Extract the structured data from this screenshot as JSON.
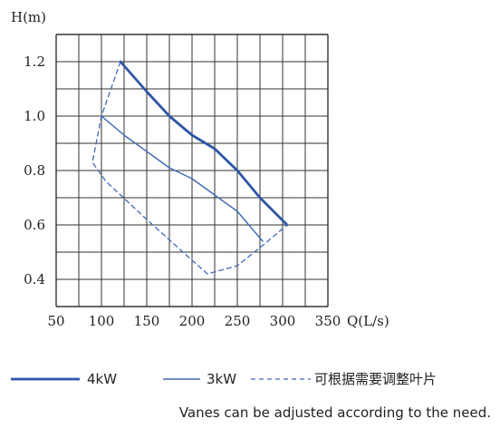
{
  "chart_data": {
    "type": "line",
    "title": "",
    "xlabel": "Q(L/s)",
    "ylabel": "H(m)",
    "xlim": [
      50,
      350
    ],
    "ylim": [
      0.3,
      1.3
    ],
    "x_ticks": [
      50,
      100,
      150,
      200,
      250,
      300,
      350
    ],
    "x_tick_labels": [
      "50",
      "100",
      "150",
      "200",
      "250",
      "300",
      "350"
    ],
    "y_ticks": [
      0.4,
      0.6,
      0.8,
      1.0,
      1.2
    ],
    "y_tick_labels": [
      "0.4",
      "0.6",
      "0.8",
      "1.0",
      "1.2"
    ],
    "grid": true,
    "legend_position": "bottom",
    "series": [
      {
        "name": "4kW",
        "style": "solid-thick",
        "color": "#2e55a6",
        "points": [
          [
            121,
            1.2
          ],
          [
            150,
            1.09
          ],
          [
            175,
            1.0
          ],
          [
            200,
            0.93
          ],
          [
            225,
            0.88
          ],
          [
            250,
            0.8
          ],
          [
            275,
            0.7
          ],
          [
            305,
            0.6
          ]
        ]
      },
      {
        "name": "3kW",
        "style": "solid-thin",
        "color": "#3f69b7",
        "points": [
          [
            100,
            1.0
          ],
          [
            125,
            0.93
          ],
          [
            150,
            0.87
          ],
          [
            175,
            0.81
          ],
          [
            200,
            0.77
          ],
          [
            225,
            0.71
          ],
          [
            250,
            0.65
          ],
          [
            278,
            0.54
          ]
        ]
      },
      {
        "name": "可根据需要调整叶片",
        "style": "dashed",
        "color": "#3f69b7",
        "points": [
          [
            121,
            1.2
          ],
          [
            100,
            1.0
          ],
          [
            90,
            0.83
          ],
          [
            105,
            0.76
          ],
          [
            150,
            0.62
          ],
          [
            190,
            0.5
          ],
          [
            217,
            0.42
          ],
          [
            250,
            0.45
          ],
          [
            280,
            0.53
          ],
          [
            305,
            0.6
          ]
        ]
      }
    ]
  },
  "note": "Vanes can be adjusted according to the need."
}
